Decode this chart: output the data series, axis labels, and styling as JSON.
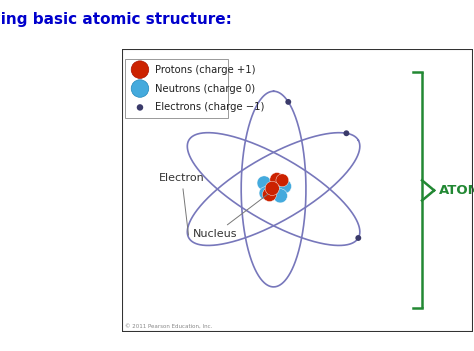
{
  "title": "Reviewing basic atomic structure:",
  "title_color": "#0000cc",
  "title_fontsize": 11,
  "bg_color": "#ffffff",
  "legend_items": [
    {
      "label": "Protons (charge +1)",
      "color": "#cc2200"
    },
    {
      "label": "Neutrons (charge 0)",
      "color": "#44aadd"
    },
    {
      "label": "Electrons (charge −1)",
      "color": "#3a3a6a"
    }
  ],
  "orbit_color": "#7777bb",
  "orbit_lw": 1.2,
  "electron_color": "#3a3a6a",
  "electron_size": 18,
  "atom_label": "ATOM",
  "atom_label_color": "#228833",
  "electron_label": "Electron",
  "nucleus_label": "Nucleus",
  "label_color": "#333333",
  "bracket_color": "#228833",
  "copyright": "© 2011 Pearson Education, Inc."
}
